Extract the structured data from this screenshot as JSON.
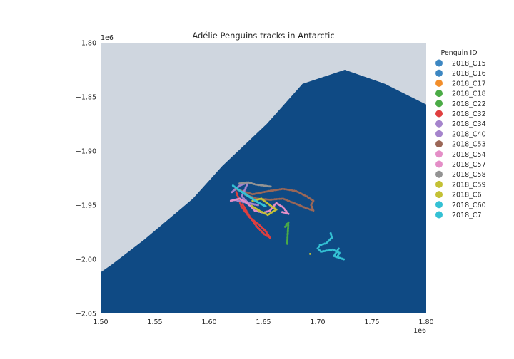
{
  "chart_data": {
    "type": "scatter",
    "title": "Adélie Penguins tracks in Antarctic",
    "xlabel": "",
    "ylabel": "",
    "x_offset_label": "1e6",
    "y_offset_label": "1e6",
    "xlim": [
      1500000,
      1800000
    ],
    "ylim": [
      -2050000,
      -1800000
    ],
    "xticks": [
      1500000,
      1550000,
      1600000,
      1650000,
      1700000,
      1750000,
      1800000
    ],
    "xtick_labels": [
      "1.50",
      "1.55",
      "1.60",
      "1.65",
      "1.70",
      "1.75",
      "1.80"
    ],
    "yticks": [
      -1800000,
      -1850000,
      -1900000,
      -1950000,
      -2000000,
      -2050000
    ],
    "ytick_labels": [
      "−1.80",
      "−1.85",
      "−1.90",
      "−1.95",
      "−2.00",
      "−2.05"
    ],
    "grid": false,
    "background": {
      "ocean_color": "#0f4a84",
      "land_color": "#cfd6df"
    },
    "ocean_boundary": [
      [
        1500000,
        -2012000
      ],
      [
        1510000,
        -2005000
      ],
      [
        1540000,
        -1982000
      ],
      [
        1585000,
        -1944000
      ],
      [
        1612000,
        -1914000
      ],
      [
        1653000,
        -1875000
      ],
      [
        1686000,
        -1838000
      ],
      [
        1725000,
        -1825000
      ],
      [
        1762000,
        -1838000
      ],
      [
        1800000,
        -1857000
      ]
    ],
    "legend": {
      "title": "Penguin ID",
      "placement": "outside-right",
      "entries": [
        {
          "label": "2018_C15",
          "color": "#3d87c2"
        },
        {
          "label": "2018_C16",
          "color": "#3d87c2"
        },
        {
          "label": "2018_C17",
          "color": "#f28e2b"
        },
        {
          "label": "2018_C18",
          "color": "#4bab46"
        },
        {
          "label": "2018_C22",
          "color": "#4bab46"
        },
        {
          "label": "2018_C32",
          "color": "#e03f3f"
        },
        {
          "label": "2018_C34",
          "color": "#a584cc"
        },
        {
          "label": "2018_C40",
          "color": "#a584cc"
        },
        {
          "label": "2018_C53",
          "color": "#9b6757"
        },
        {
          "label": "2018_C54",
          "color": "#e48ec7"
        },
        {
          "label": "2018_C57",
          "color": "#e48ec7"
        },
        {
          "label": "2018_C58",
          "color": "#939393"
        },
        {
          "label": "2018_C59",
          "color": "#c4c135"
        },
        {
          "label": "2018_C6",
          "color": "#c4c135"
        },
        {
          "label": "2018_C60",
          "color": "#34c1d4"
        },
        {
          "label": "2018_C7",
          "color": "#34c1d4"
        }
      ]
    },
    "series": [
      {
        "color": "#9b6757",
        "path": [
          [
            1624000,
            -1935000
          ],
          [
            1640000,
            -1940000
          ],
          [
            1655000,
            -1937000
          ],
          [
            1668000,
            -1935000
          ],
          [
            1680000,
            -1937000
          ],
          [
            1690000,
            -1942000
          ],
          [
            1696000,
            -1946000
          ],
          [
            1694000,
            -1950000
          ],
          [
            1696000,
            -1955000
          ],
          [
            1690000,
            -1953000
          ],
          [
            1678000,
            -1948000
          ],
          [
            1668000,
            -1944000
          ],
          [
            1656000,
            -1945000
          ],
          [
            1644000,
            -1944000
          ],
          [
            1632000,
            -1940000
          ]
        ]
      },
      {
        "color": "#e03f3f",
        "path": [
          [
            1625000,
            -1938000
          ],
          [
            1630000,
            -1952000
          ],
          [
            1638000,
            -1962000
          ],
          [
            1646000,
            -1968000
          ],
          [
            1652000,
            -1974000
          ],
          [
            1656000,
            -1980000
          ],
          [
            1651000,
            -1977000
          ],
          [
            1644000,
            -1970000
          ],
          [
            1637000,
            -1960000
          ],
          [
            1630000,
            -1948000
          ]
        ]
      },
      {
        "color": "#a584cc",
        "path": [
          [
            1621000,
            -1938000
          ],
          [
            1628000,
            -1932000
          ],
          [
            1636000,
            -1929000
          ],
          [
            1630000,
            -1942000
          ],
          [
            1636000,
            -1948000
          ],
          [
            1645000,
            -1950000
          ],
          [
            1622000,
            -1945000
          ]
        ]
      },
      {
        "color": "#e48ec7",
        "path": [
          [
            1620000,
            -1946000
          ],
          [
            1628000,
            -1944000
          ],
          [
            1635000,
            -1948000
          ],
          [
            1642000,
            -1955000
          ],
          [
            1650000,
            -1957000
          ],
          [
            1656000,
            -1955000
          ],
          [
            1662000,
            -1948000
          ],
          [
            1668000,
            -1952000
          ],
          [
            1673000,
            -1958000
          ],
          [
            1666000,
            -1956000
          ]
        ]
      },
      {
        "color": "#939393",
        "path": [
          [
            1628000,
            -1930000
          ],
          [
            1636000,
            -1929000
          ],
          [
            1643000,
            -1931000
          ],
          [
            1650000,
            -1932000
          ],
          [
            1658000,
            -1933000
          ]
        ]
      },
      {
        "color": "#c4c135",
        "path": [
          [
            1640000,
            -1946000
          ],
          [
            1648000,
            -1944000
          ],
          [
            1656000,
            -1950000
          ],
          [
            1662000,
            -1954000
          ],
          [
            1654000,
            -1959000
          ],
          [
            1646000,
            -1955000
          ],
          [
            1638000,
            -1950000
          ]
        ]
      },
      {
        "color": "#34c1d4",
        "path": [
          [
            1622000,
            -1932000
          ],
          [
            1630000,
            -1938000
          ],
          [
            1638000,
            -1943000
          ],
          [
            1646000,
            -1948000
          ],
          [
            1652000,
            -1951000
          ],
          [
            1644000,
            -1947000
          ],
          [
            1634000,
            -1940000
          ],
          [
            1624000,
            -1934000
          ]
        ]
      },
      {
        "color": "#4bab46",
        "path": [
          [
            1670000,
            -1970000
          ],
          [
            1673000,
            -1966000
          ],
          [
            1672000,
            -1983000
          ],
          [
            1672000,
            -1987000
          ]
        ]
      },
      {
        "color": "#34c1d4",
        "path": [
          [
            1712000,
            -1976000
          ],
          [
            1713000,
            -1980000
          ],
          [
            1708000,
            -1985000
          ],
          [
            1702000,
            -1987000
          ],
          [
            1700000,
            -1990000
          ],
          [
            1703000,
            -1993000
          ],
          [
            1714000,
            -1991000
          ],
          [
            1720000,
            -1994000
          ],
          [
            1718000,
            -1998000
          ],
          [
            1724000,
            -2000000
          ],
          [
            1715000,
            -1997000
          ],
          [
            1720000,
            -1989000
          ]
        ]
      },
      {
        "color": "#c4c135",
        "path": [
          [
            1693000,
            -1995000
          ]
        ]
      }
    ]
  }
}
